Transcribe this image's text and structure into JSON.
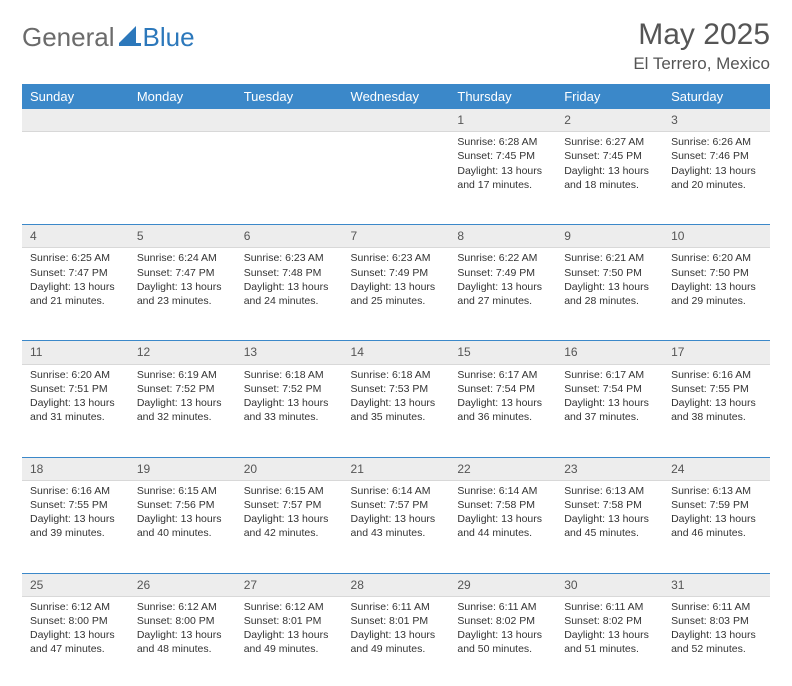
{
  "logo": {
    "general": "General",
    "blue": "Blue"
  },
  "title": "May 2025",
  "location": "El Terrero, Mexico",
  "colors": {
    "header_bg": "#3b88c9",
    "header_text": "#ffffff",
    "daynum_bg": "#ededed",
    "accent": "#2c78bb",
    "text": "#333333"
  },
  "weekdays": [
    "Sunday",
    "Monday",
    "Tuesday",
    "Wednesday",
    "Thursday",
    "Friday",
    "Saturday"
  ],
  "weeks": [
    [
      null,
      null,
      null,
      null,
      {
        "n": "1",
        "sr": "Sunrise: 6:28 AM",
        "ss": "Sunset: 7:45 PM",
        "dl": "Daylight: 13 hours and 17 minutes."
      },
      {
        "n": "2",
        "sr": "Sunrise: 6:27 AM",
        "ss": "Sunset: 7:45 PM",
        "dl": "Daylight: 13 hours and 18 minutes."
      },
      {
        "n": "3",
        "sr": "Sunrise: 6:26 AM",
        "ss": "Sunset: 7:46 PM",
        "dl": "Daylight: 13 hours and 20 minutes."
      }
    ],
    [
      {
        "n": "4",
        "sr": "Sunrise: 6:25 AM",
        "ss": "Sunset: 7:47 PM",
        "dl": "Daylight: 13 hours and 21 minutes."
      },
      {
        "n": "5",
        "sr": "Sunrise: 6:24 AM",
        "ss": "Sunset: 7:47 PM",
        "dl": "Daylight: 13 hours and 23 minutes."
      },
      {
        "n": "6",
        "sr": "Sunrise: 6:23 AM",
        "ss": "Sunset: 7:48 PM",
        "dl": "Daylight: 13 hours and 24 minutes."
      },
      {
        "n": "7",
        "sr": "Sunrise: 6:23 AM",
        "ss": "Sunset: 7:49 PM",
        "dl": "Daylight: 13 hours and 25 minutes."
      },
      {
        "n": "8",
        "sr": "Sunrise: 6:22 AM",
        "ss": "Sunset: 7:49 PM",
        "dl": "Daylight: 13 hours and 27 minutes."
      },
      {
        "n": "9",
        "sr": "Sunrise: 6:21 AM",
        "ss": "Sunset: 7:50 PM",
        "dl": "Daylight: 13 hours and 28 minutes."
      },
      {
        "n": "10",
        "sr": "Sunrise: 6:20 AM",
        "ss": "Sunset: 7:50 PM",
        "dl": "Daylight: 13 hours and 29 minutes."
      }
    ],
    [
      {
        "n": "11",
        "sr": "Sunrise: 6:20 AM",
        "ss": "Sunset: 7:51 PM",
        "dl": "Daylight: 13 hours and 31 minutes."
      },
      {
        "n": "12",
        "sr": "Sunrise: 6:19 AM",
        "ss": "Sunset: 7:52 PM",
        "dl": "Daylight: 13 hours and 32 minutes."
      },
      {
        "n": "13",
        "sr": "Sunrise: 6:18 AM",
        "ss": "Sunset: 7:52 PM",
        "dl": "Daylight: 13 hours and 33 minutes."
      },
      {
        "n": "14",
        "sr": "Sunrise: 6:18 AM",
        "ss": "Sunset: 7:53 PM",
        "dl": "Daylight: 13 hours and 35 minutes."
      },
      {
        "n": "15",
        "sr": "Sunrise: 6:17 AM",
        "ss": "Sunset: 7:54 PM",
        "dl": "Daylight: 13 hours and 36 minutes."
      },
      {
        "n": "16",
        "sr": "Sunrise: 6:17 AM",
        "ss": "Sunset: 7:54 PM",
        "dl": "Daylight: 13 hours and 37 minutes."
      },
      {
        "n": "17",
        "sr": "Sunrise: 6:16 AM",
        "ss": "Sunset: 7:55 PM",
        "dl": "Daylight: 13 hours and 38 minutes."
      }
    ],
    [
      {
        "n": "18",
        "sr": "Sunrise: 6:16 AM",
        "ss": "Sunset: 7:55 PM",
        "dl": "Daylight: 13 hours and 39 minutes."
      },
      {
        "n": "19",
        "sr": "Sunrise: 6:15 AM",
        "ss": "Sunset: 7:56 PM",
        "dl": "Daylight: 13 hours and 40 minutes."
      },
      {
        "n": "20",
        "sr": "Sunrise: 6:15 AM",
        "ss": "Sunset: 7:57 PM",
        "dl": "Daylight: 13 hours and 42 minutes."
      },
      {
        "n": "21",
        "sr": "Sunrise: 6:14 AM",
        "ss": "Sunset: 7:57 PM",
        "dl": "Daylight: 13 hours and 43 minutes."
      },
      {
        "n": "22",
        "sr": "Sunrise: 6:14 AM",
        "ss": "Sunset: 7:58 PM",
        "dl": "Daylight: 13 hours and 44 minutes."
      },
      {
        "n": "23",
        "sr": "Sunrise: 6:13 AM",
        "ss": "Sunset: 7:58 PM",
        "dl": "Daylight: 13 hours and 45 minutes."
      },
      {
        "n": "24",
        "sr": "Sunrise: 6:13 AM",
        "ss": "Sunset: 7:59 PM",
        "dl": "Daylight: 13 hours and 46 minutes."
      }
    ],
    [
      {
        "n": "25",
        "sr": "Sunrise: 6:12 AM",
        "ss": "Sunset: 8:00 PM",
        "dl": "Daylight: 13 hours and 47 minutes."
      },
      {
        "n": "26",
        "sr": "Sunrise: 6:12 AM",
        "ss": "Sunset: 8:00 PM",
        "dl": "Daylight: 13 hours and 48 minutes."
      },
      {
        "n": "27",
        "sr": "Sunrise: 6:12 AM",
        "ss": "Sunset: 8:01 PM",
        "dl": "Daylight: 13 hours and 49 minutes."
      },
      {
        "n": "28",
        "sr": "Sunrise: 6:11 AM",
        "ss": "Sunset: 8:01 PM",
        "dl": "Daylight: 13 hours and 49 minutes."
      },
      {
        "n": "29",
        "sr": "Sunrise: 6:11 AM",
        "ss": "Sunset: 8:02 PM",
        "dl": "Daylight: 13 hours and 50 minutes."
      },
      {
        "n": "30",
        "sr": "Sunrise: 6:11 AM",
        "ss": "Sunset: 8:02 PM",
        "dl": "Daylight: 13 hours and 51 minutes."
      },
      {
        "n": "31",
        "sr": "Sunrise: 6:11 AM",
        "ss": "Sunset: 8:03 PM",
        "dl": "Daylight: 13 hours and 52 minutes."
      }
    ]
  ]
}
